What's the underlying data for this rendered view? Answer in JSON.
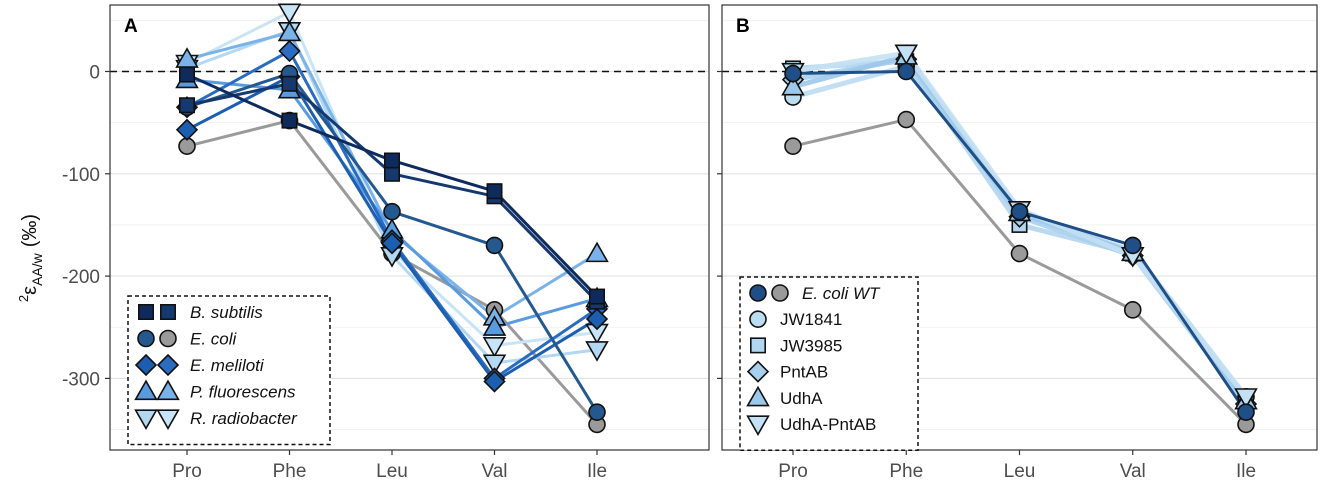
{
  "y_axis": {
    "superscript": "2",
    "symbol": "ε",
    "subscript": "AA/w",
    "unit": "(‰)"
  },
  "colors": {
    "B. subtilis": "#0f2b5e",
    "E. coli": "#24598f",
    "E. coli grey": "#9a9a9a",
    "E. meliloti": "#1c5eb0",
    "P. fluorescens": "#5a9be0",
    "R. radiobacter": "#b4d8f2",
    "E. coli WT": "#1f4f86",
    "JW1841": "#bcdcf2",
    "JW3985": "#b3d6f0",
    "PntAB": "#a8d0ee",
    "UdhA": "#9cc8ea",
    "UdhA-PntAB": "#c4e0f4"
  },
  "chart_data": [
    {
      "panel": "A",
      "type": "line",
      "categories": [
        "Pro",
        "Phe",
        "Leu",
        "Val",
        "Ile"
      ],
      "ylim": [
        -370,
        65
      ],
      "yticks": [
        0,
        -100,
        -200,
        -300
      ],
      "ytick_labels": [
        "0",
        "-100",
        "-200",
        "-300"
      ],
      "zero_line": "dashed",
      "series": [
        {
          "species": "E. coli",
          "variant": "grey",
          "marker": "circle",
          "values": [
            -73,
            -48,
            -178,
            -233,
            -345
          ]
        },
        {
          "species": "R. radiobacter",
          "variant": "light",
          "marker": "triangle-down",
          "values": [
            8,
            58,
            -175,
            -268,
            -255
          ]
        },
        {
          "species": "R. radiobacter",
          "variant": "dark",
          "marker": "triangle-down",
          "values": [
            3,
            40,
            -180,
            -285,
            -272
          ]
        },
        {
          "species": "P. fluorescens",
          "variant": "light",
          "marker": "triangle-up",
          "values": [
            12,
            38,
            -158,
            -240,
            -178
          ]
        },
        {
          "species": "P. fluorescens",
          "variant": "dark",
          "marker": "triangle-up",
          "values": [
            -8,
            -18,
            -155,
            -250,
            -222
          ]
        },
        {
          "species": "E. meliloti",
          "variant": "light",
          "marker": "diamond",
          "values": [
            -35,
            20,
            -165,
            -300,
            -232
          ]
        },
        {
          "species": "E. meliloti",
          "variant": "dark",
          "marker": "diamond",
          "values": [
            -57,
            -5,
            -168,
            -303,
            -242
          ]
        },
        {
          "species": "E. coli",
          "variant": "dark",
          "marker": "circle",
          "values": [
            -35,
            -2,
            -137,
            -170,
            -333
          ]
        },
        {
          "species": "B. subtilis",
          "variant": "light",
          "marker": "square",
          "values": [
            -33,
            -12,
            -100,
            -122,
            -225
          ]
        },
        {
          "species": "B. subtilis",
          "variant": "dark",
          "marker": "square",
          "values": [
            -3,
            -48,
            -87,
            -117,
            -220
          ]
        }
      ],
      "legend": [
        {
          "label": "B. subtilis",
          "markers": [
            "square",
            "square"
          ],
          "italic": true
        },
        {
          "label": "E. coli",
          "markers": [
            "circle",
            "circle-grey"
          ],
          "italic": true
        },
        {
          "label": "E. meliloti",
          "markers": [
            "diamond",
            "diamond"
          ],
          "italic": true
        },
        {
          "label": "P. fluorescens",
          "markers": [
            "triangle-up",
            "triangle-up"
          ],
          "italic": true
        },
        {
          "label": "R. radiobacter",
          "markers": [
            "triangle-down",
            "triangle-down"
          ],
          "italic": true
        }
      ],
      "legend_position": "bottom-left"
    },
    {
      "panel": "B",
      "type": "line",
      "categories": [
        "Pro",
        "Phe",
        "Leu",
        "Val",
        "Ile"
      ],
      "ylim": [
        -370,
        65
      ],
      "yticks": [
        0,
        -100,
        -200,
        -300
      ],
      "ytick_labels": [
        "",
        "",
        "",
        ""
      ],
      "zero_line": "dashed",
      "series": [
        {
          "strain": "E. coli WT",
          "variant": "grey",
          "marker": "circle",
          "values": [
            -73,
            -47,
            -178,
            -233,
            -345
          ]
        },
        {
          "strain": "JW1841",
          "marker": "circle",
          "values": [
            -25,
            5,
            -140,
            -175,
            -318
          ]
        },
        {
          "strain": "JW3985",
          "marker": "square",
          "values": [
            3,
            10,
            -150,
            -178,
            -322
          ]
        },
        {
          "strain": "PntAB",
          "marker": "diamond",
          "values": [
            -8,
            12,
            -142,
            -180,
            -325
          ]
        },
        {
          "strain": "UdhA",
          "marker": "triangle-up",
          "values": [
            -15,
            15,
            -138,
            -177,
            -322
          ]
        },
        {
          "strain": "UdhA-PntAB",
          "marker": "triangle-down",
          "values": [
            0,
            18,
            -135,
            -180,
            -318
          ]
        },
        {
          "strain": "E. coli WT",
          "variant": "dark",
          "marker": "circle",
          "values": [
            -2,
            0,
            -137,
            -170,
            -333
          ]
        }
      ],
      "legend": [
        {
          "label": "E. coli WT",
          "markers": [
            "circle",
            "circle-grey"
          ],
          "italic": true
        },
        {
          "label": "JW1841",
          "markers": [
            "circle-open"
          ],
          "italic": false
        },
        {
          "label": "JW3985",
          "markers": [
            "square-open"
          ],
          "italic": false
        },
        {
          "label": "PntAB",
          "markers": [
            "diamond-open"
          ],
          "italic": false
        },
        {
          "label": "UdhA",
          "markers": [
            "triangle-up-open"
          ],
          "italic": false
        },
        {
          "label": "UdhA-PntAB",
          "markers": [
            "triangle-down-open"
          ],
          "italic": false
        }
      ],
      "legend_position": "bottom-left"
    }
  ]
}
